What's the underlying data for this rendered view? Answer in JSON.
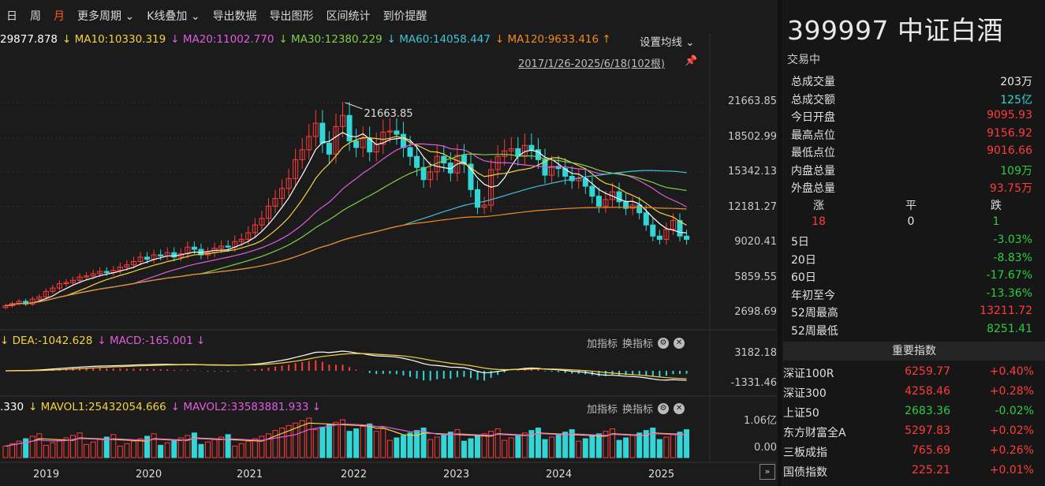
{
  "toolbar": {
    "items": [
      "日",
      "周",
      "月",
      "更多周期 ⌄",
      "K线叠加 ⌄",
      "导出数据",
      "导出图形",
      "区间统计",
      "到价提醒"
    ],
    "active_index": 2
  },
  "ma_legend": {
    "items": [
      {
        "text": "29877.878",
        "color": "#ffffff"
      },
      {
        "text": "↓ MA10:10330.319",
        "color": "#f5d142"
      },
      {
        "text": "↓ MA20:11002.770",
        "color": "#e05de0"
      },
      {
        "text": "↓ MA30:12380.229",
        "color": "#7fd04a"
      },
      {
        "text": "↓ MA60:14058.447",
        "color": "#3fc3d8"
      },
      {
        "text": "↓ MA120:9633.416 ↑",
        "color": "#f08a24"
      }
    ],
    "settings_label": "设置均线 ⌄"
  },
  "range_label": "2017/1/26-2025/6/18(102根)",
  "peak_label": "21663.85",
  "price_axis": [
    "21663.85",
    "18502.99",
    "15342.13",
    "12181.27",
    "9020.41",
    "5859.55",
    "2698.69"
  ],
  "macd_header": [
    {
      "text": "↓ DEA:-1042.628",
      "color": "#f5d142"
    },
    {
      "text": "↓ MACD:-165.001 ↓",
      "color": "#e05de0"
    }
  ],
  "macd_axis": [
    "3182.18",
    "-1331.46"
  ],
  "vol_header": [
    {
      "text": ".330",
      "color": "#ffffff"
    },
    {
      "text": "↓ MAVOL1:25432054.666",
      "color": "#f5d142"
    },
    {
      "text": "↓ MAVOL2:33583881.933 ↓",
      "color": "#e05de0"
    }
  ],
  "vol_axis": [
    "1.06亿",
    "0.00"
  ],
  "indicator_tools": {
    "add": "加指标",
    "switch": "换指标"
  },
  "x_labels": [
    "2019",
    "2020",
    "2021",
    "2022",
    "2023",
    "2024",
    "2025"
  ],
  "quote": {
    "title": "399997 中证白酒",
    "status": "交易中",
    "stats": [
      {
        "k": "总成交量",
        "v": "203万",
        "cls": "white"
      },
      {
        "k": "总成交额",
        "v": "125亿",
        "cls": "cyan"
      },
      {
        "k": "今日开盘",
        "v": "9095.93",
        "cls": "red"
      },
      {
        "k": "最高点位",
        "v": "9156.92",
        "cls": "red"
      },
      {
        "k": "最低点位",
        "v": "9016.66",
        "cls": "red"
      },
      {
        "k": "内盘总量",
        "v": "109万",
        "cls": "green"
      },
      {
        "k": "外盘总量",
        "v": "93.75万",
        "cls": "red"
      }
    ],
    "updown_labels": [
      "涨",
      "平",
      "跌"
    ],
    "updown_values": [
      "18",
      "0",
      "1"
    ],
    "perf": [
      {
        "k": "5日",
        "v": "-3.03%",
        "cls": "green"
      },
      {
        "k": "20日",
        "v": "-8.83%",
        "cls": "green"
      },
      {
        "k": "60日",
        "v": "-17.67%",
        "cls": "green"
      },
      {
        "k": "年初至今",
        "v": "-13.36%",
        "cls": "green"
      },
      {
        "k": "52周最高",
        "v": "13211.72",
        "cls": "red"
      },
      {
        "k": "52周最低",
        "v": "8251.41",
        "cls": "green"
      }
    ],
    "index_header": "重要指数",
    "indices": [
      {
        "n": "深证100R",
        "p": "6259.77",
        "c": "+0.40%",
        "cls": "red"
      },
      {
        "n": "深证300",
        "p": "4258.46",
        "c": "+0.28%",
        "cls": "red"
      },
      {
        "n": "上证50",
        "p": "2683.36",
        "c": "-0.02%",
        "cls": "green"
      },
      {
        "n": "东方财富全A",
        "p": "5297.83",
        "c": "+0.02%",
        "cls": "red"
      },
      {
        "n": "三板成指",
        "p": "765.69",
        "c": "+0.26%",
        "cls": "red"
      },
      {
        "n": "国债指数",
        "p": "225.21",
        "c": "+0.01%",
        "cls": "red"
      }
    ]
  },
  "colors": {
    "up": "#ff3b3b",
    "down": "#33d6d6",
    "bg": "#1b1b1b"
  },
  "chart_data": {
    "type": "candlestick",
    "closes": [
      3300,
      3500,
      3700,
      3450,
      3900,
      4100,
      4600,
      4900,
      5300,
      5400,
      5600,
      5900,
      6000,
      6200,
      6400,
      6300,
      6500,
      6800,
      7000,
      7300,
      7700,
      7500,
      7900,
      7800,
      8100,
      7700,
      8000,
      8600,
      8400,
      7900,
      8100,
      8500,
      8700,
      8600,
      9100,
      9300,
      9900,
      10600,
      11200,
      12300,
      13000,
      13900,
      14800,
      16500,
      17400,
      18600,
      19800,
      18000,
      17000,
      19500,
      20500,
      18200,
      17600,
      18400,
      17200,
      17900,
      19000,
      19100,
      18800,
      17600,
      16800,
      15800,
      14700,
      15400,
      16800,
      16200,
      15300,
      16900,
      16100,
      13800,
      12200,
      12400,
      15600,
      16800,
      17300,
      17500,
      16800,
      17800,
      17400,
      16500,
      15100,
      15900,
      15700,
      15000,
      14600,
      14800,
      14100,
      13200,
      12300,
      12900,
      13600,
      12700,
      12100,
      12400,
      11700,
      10600,
      9600,
      9300,
      10200,
      11000,
      9600,
      9300
    ]
  }
}
